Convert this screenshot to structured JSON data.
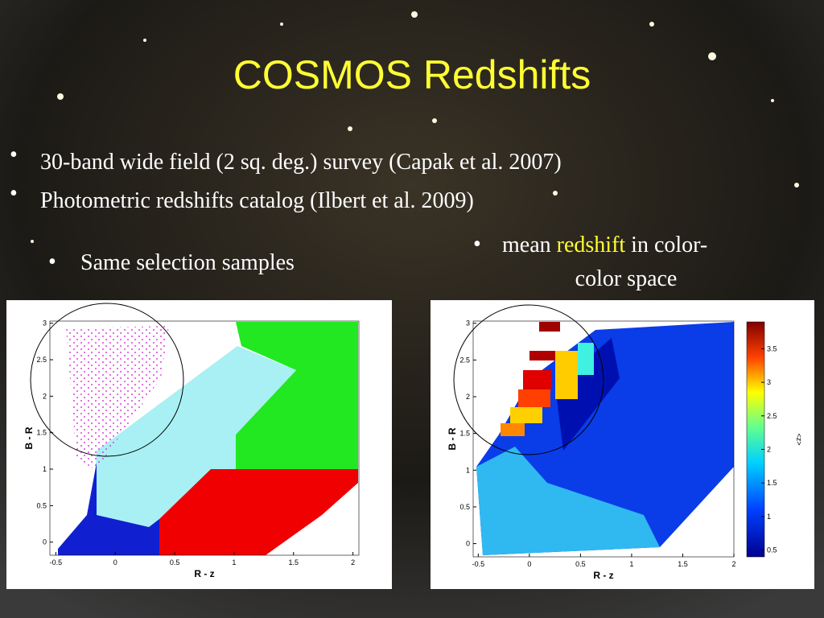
{
  "title": "COSMOS Redshifts",
  "bullets": [
    "30-band wide field (2 sq. deg.) survey (Capak et al. 2007)",
    "Photometric redshifts catalog (Ilbert et al. 2009)"
  ],
  "left_caption": "Same selection samples",
  "right_caption": {
    "before": "mean ",
    "highlight": "redshift",
    "after": " in color-",
    "line2": "color space"
  },
  "left_plot": {
    "xlabel": "R - z",
    "ylabel": "B - R",
    "xlim": [
      -0.55,
      2.05
    ],
    "ylim": [
      -0.18,
      3.03
    ],
    "xticks": [
      -0.5,
      0,
      0.5,
      1,
      1.5,
      2
    ],
    "yticks": [
      0,
      0.5,
      1,
      1.5,
      2,
      2.5,
      3
    ]
  },
  "right_plot": {
    "xlabel": "R - z",
    "ylabel": "B - R",
    "xlim": [
      -0.55,
      2.0
    ],
    "ylim": [
      -0.18,
      3.03
    ],
    "xticks": [
      -0.5,
      0,
      0.5,
      1,
      1.5,
      2
    ],
    "yticks": [
      0,
      0.5,
      1,
      1.5,
      2,
      2.5,
      3
    ],
    "colorbar": {
      "label": "<z>",
      "lim": [
        0.4,
        3.9
      ],
      "ticks": [
        0.5,
        1,
        1.5,
        2,
        2.5,
        3,
        3.5
      ]
    }
  }
}
